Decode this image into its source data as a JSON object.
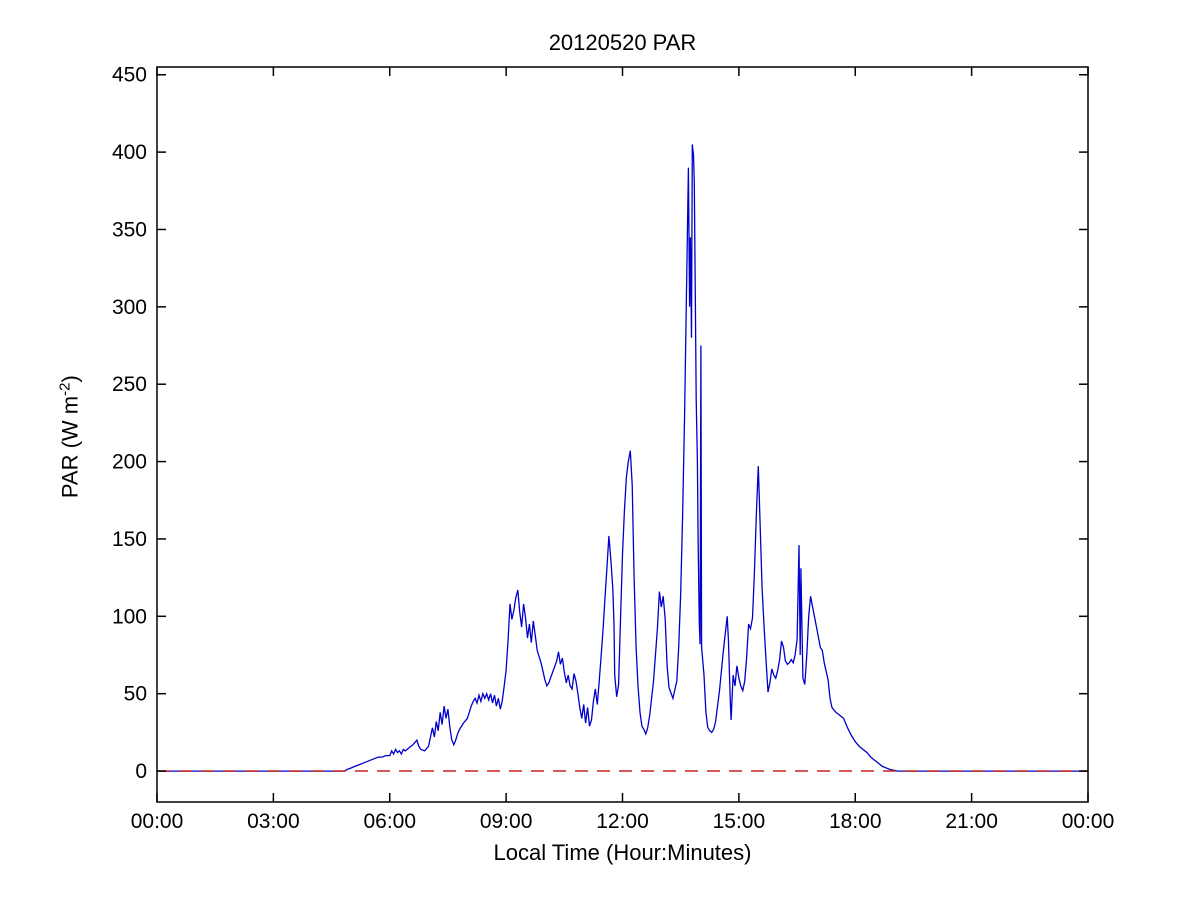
{
  "chart_data": {
    "type": "line",
    "title": "20120520 PAR",
    "xlabel": "Local Time (Hour:Minutes)",
    "ylabel": {
      "prefix": "PAR (W m",
      "sup": "-2",
      "suffix": ")"
    },
    "x_tick_hours": [
      0,
      3,
      6,
      9,
      12,
      15,
      18,
      21,
      24
    ],
    "x_tick_labels": [
      "00:00",
      "03:00",
      "06:00",
      "09:00",
      "12:00",
      "15:00",
      "18:00",
      "21:00",
      "00:00"
    ],
    "y_tick_values": [
      0,
      50,
      100,
      150,
      200,
      250,
      300,
      350,
      400,
      450
    ],
    "y_tick_labels": [
      "0",
      "50",
      "100",
      "150",
      "200",
      "250",
      "300",
      "350",
      "400",
      "450"
    ],
    "xlim_hours": [
      0,
      24
    ],
    "ylim": [
      -20,
      455
    ],
    "grid": false,
    "legend": "none",
    "line_color": "#0000cc",
    "zero_line": {
      "value": 0,
      "color": "#cc2222",
      "style": "dashed"
    },
    "series": [
      {
        "name": "PAR",
        "x_hours": [
          0,
          1,
          2,
          3,
          4,
          4.5,
          4.83,
          4.9,
          5,
          5.1,
          5.2,
          5.3,
          5.4,
          5.5,
          5.6,
          5.7,
          5.8,
          5.9,
          6,
          6.05,
          6.1,
          6.15,
          6.2,
          6.25,
          6.3,
          6.35,
          6.4,
          6.5,
          6.6,
          6.7,
          6.75,
          6.8,
          6.9,
          7,
          7.05,
          7.1,
          7.15,
          7.2,
          7.25,
          7.3,
          7.35,
          7.4,
          7.45,
          7.5,
          7.55,
          7.6,
          7.65,
          7.7,
          7.75,
          7.8,
          7.9,
          8,
          8.05,
          8.1,
          8.15,
          8.2,
          8.25,
          8.3,
          8.35,
          8.4,
          8.45,
          8.5,
          8.55,
          8.6,
          8.65,
          8.7,
          8.75,
          8.8,
          8.85,
          8.9,
          8.95,
          9,
          9.05,
          9.1,
          9.15,
          9.2,
          9.25,
          9.3,
          9.35,
          9.4,
          9.45,
          9.5,
          9.55,
          9.6,
          9.65,
          9.7,
          9.75,
          9.8,
          9.9,
          10,
          10.05,
          10.1,
          10.2,
          10.3,
          10.35,
          10.4,
          10.45,
          10.5,
          10.55,
          10.6,
          10.65,
          10.7,
          10.75,
          10.8,
          10.85,
          10.9,
          10.95,
          11,
          11.05,
          11.1,
          11.15,
          11.2,
          11.25,
          11.3,
          11.35,
          11.4,
          11.45,
          11.5,
          11.55,
          11.6,
          11.65,
          11.7,
          11.75,
          11.78,
          11.8,
          11.85,
          11.9,
          11.95,
          12,
          12.05,
          12.1,
          12.15,
          12.2,
          12.25,
          12.3,
          12.35,
          12.4,
          12.45,
          12.5,
          12.55,
          12.6,
          12.65,
          12.7,
          12.8,
          12.9,
          12.95,
          13,
          13.05,
          13.1,
          13.15,
          13.2,
          13.3,
          13.4,
          13.45,
          13.5,
          13.55,
          13.6,
          13.65,
          13.7,
          13.73,
          13.75,
          13.78,
          13.8,
          13.83,
          13.85,
          13.88,
          13.9,
          13.93,
          13.95,
          13.98,
          14,
          14.02,
          14.04,
          14.1,
          14.15,
          14.2,
          14.25,
          14.3,
          14.35,
          14.4,
          14.5,
          14.6,
          14.7,
          14.73,
          14.78,
          14.8,
          14.85,
          14.9,
          14.95,
          15,
          15.05,
          15.1,
          15.15,
          15.2,
          15.25,
          15.3,
          15.35,
          15.4,
          15.45,
          15.5,
          15.55,
          15.6,
          15.65,
          15.7,
          15.75,
          15.8,
          15.85,
          15.9,
          15.95,
          16,
          16.05,
          16.1,
          16.15,
          16.2,
          16.25,
          16.3,
          16.35,
          16.4,
          16.45,
          16.5,
          16.55,
          16.58,
          16.6,
          16.65,
          16.7,
          16.75,
          16.8,
          16.85,
          16.9,
          17,
          17.1,
          17.15,
          17.2,
          17.3,
          17.35,
          17.4,
          17.5,
          17.6,
          17.7,
          17.8,
          17.9,
          18,
          18.1,
          18.2,
          18.3,
          18.4,
          18.5,
          18.6,
          18.7,
          18.8,
          18.9,
          19,
          19.1,
          19.5,
          20,
          21,
          22,
          23,
          24
        ],
        "y": [
          0,
          0,
          0,
          0,
          0,
          0,
          0,
          1,
          2,
          3,
          4,
          5,
          6,
          7,
          8,
          9,
          9,
          10,
          10,
          13,
          11,
          14,
          12,
          13,
          11,
          14,
          13,
          15,
          17,
          20,
          16,
          14,
          13,
          16,
          22,
          28,
          22,
          32,
          26,
          38,
          30,
          42,
          34,
          40,
          28,
          20,
          17,
          20,
          24,
          27,
          31,
          34,
          38,
          42,
          45,
          47,
          44,
          49,
          45,
          50,
          47,
          50,
          46,
          50,
          44,
          49,
          42,
          47,
          40,
          45,
          55,
          65,
          85,
          108,
          98,
          104,
          112,
          117,
          103,
          93,
          108,
          99,
          86,
          95,
          83,
          97,
          88,
          78,
          70,
          59,
          55,
          57,
          64,
          71,
          77,
          69,
          73,
          64,
          57,
          62,
          55,
          53,
          63,
          58,
          50,
          41,
          34,
          43,
          31,
          41,
          29,
          33,
          45,
          53,
          43,
          58,
          75,
          92,
          112,
          132,
          152,
          136,
          118,
          95,
          62,
          48,
          56,
          100,
          140,
          168,
          190,
          200,
          207,
          185,
          125,
          80,
          55,
          38,
          29,
          27,
          24,
          28,
          36,
          58,
          92,
          116,
          106,
          113,
          98,
          68,
          54,
          47,
          58,
          80,
          115,
          165,
          230,
          310,
          390,
          300,
          345,
          280,
          405,
          398,
          380,
          300,
          240,
          200,
          150,
          95,
          82,
          275,
          80,
          62,
          38,
          28,
          26,
          25,
          27,
          32,
          52,
          78,
          100,
          85,
          45,
          33,
          62,
          55,
          68,
          60,
          55,
          52,
          58,
          73,
          95,
          92,
          99,
          128,
          165,
          197,
          158,
          118,
          93,
          72,
          51,
          57,
          66,
          62,
          60,
          65,
          72,
          84,
          80,
          71,
          69,
          70,
          72,
          70,
          75,
          85,
          146,
          75,
          131,
          60,
          56,
          75,
          100,
          113,
          106,
          93,
          80,
          78,
          70,
          59,
          47,
          41,
          38,
          36,
          34,
          28,
          23,
          19,
          16,
          14,
          12,
          9,
          7,
          5,
          3,
          2,
          1,
          0.5,
          0,
          0,
          0,
          0,
          0,
          0,
          0
        ]
      }
    ]
  }
}
